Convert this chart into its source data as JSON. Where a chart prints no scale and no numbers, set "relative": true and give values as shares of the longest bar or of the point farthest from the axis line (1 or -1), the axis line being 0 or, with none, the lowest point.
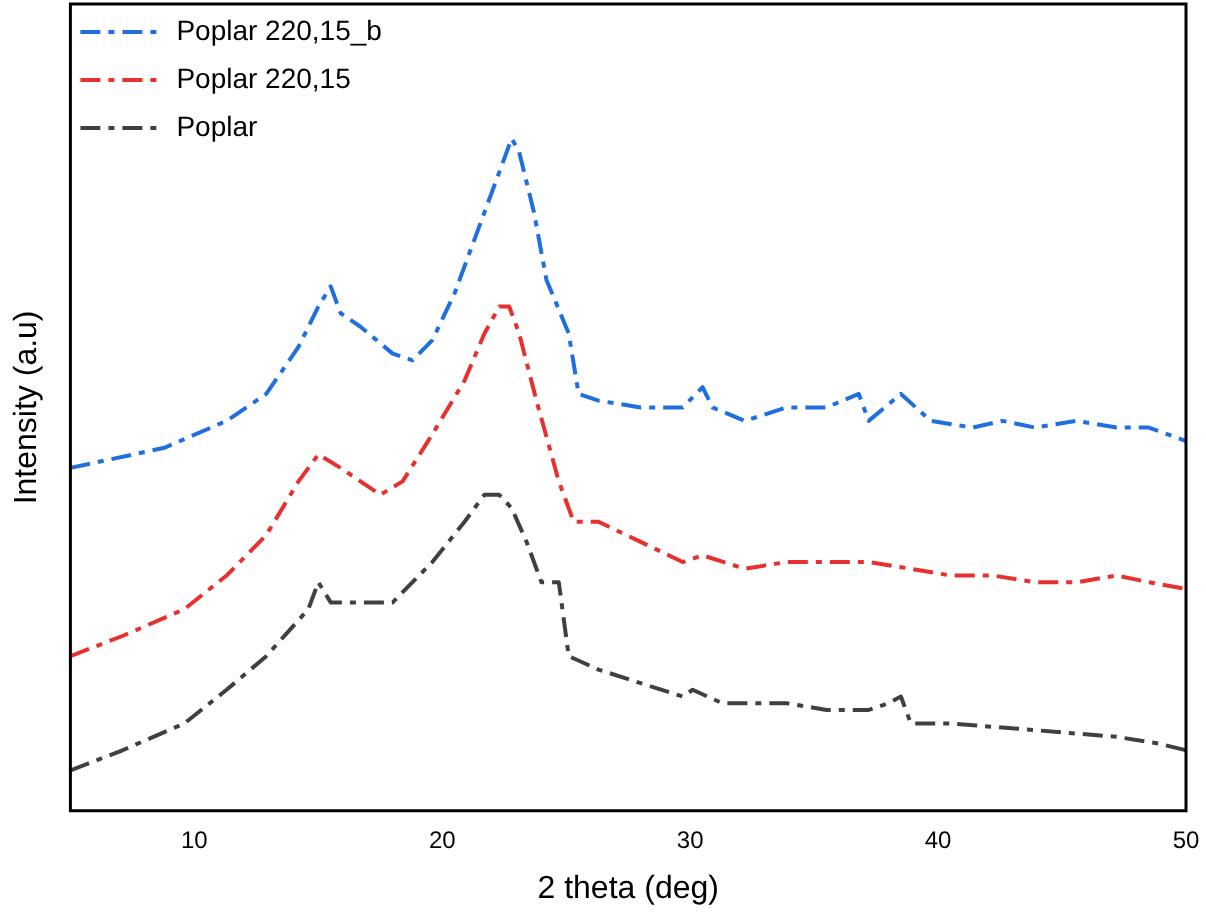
{
  "chart_data": {
    "type": "line",
    "xlabel": "2 theta (deg)",
    "ylabel": "Intensity (a.u)",
    "relative": true,
    "xlim": [
      5,
      50
    ],
    "xticks": [
      10,
      20,
      30,
      40,
      50
    ],
    "grid": false,
    "legend": "top left",
    "marker": "none",
    "line_style": "dashed",
    "series": [
      {
        "name": "Poplar 220,15_b",
        "color": "#1f6fe0",
        "x": [
          5.0,
          8.8,
          11.3,
          12.9,
          14.2,
          15.0,
          15.5,
          15.9,
          16.7,
          18.0,
          18.8,
          19.6,
          20.5,
          21.3,
          22.1,
          22.6,
          22.8,
          23.1,
          23.7,
          24.2,
          25.1,
          25.5,
          26.3,
          28.0,
          29.7,
          30.5,
          30.9,
          32.2,
          33.9,
          35.5,
          36.8,
          37.2,
          38.5,
          39.7,
          41.4,
          42.6,
          43.9,
          45.6,
          47.2,
          48.5,
          50.0
        ],
        "values": [
          0.51,
          0.54,
          0.58,
          0.62,
          0.69,
          0.75,
          0.78,
          0.74,
          0.72,
          0.68,
          0.67,
          0.7,
          0.77,
          0.85,
          0.93,
          0.98,
          1,
          0.98,
          0.89,
          0.79,
          0.71,
          0.62,
          0.61,
          0.6,
          0.6,
          0.63,
          0.6,
          0.58,
          0.6,
          0.6,
          0.62,
          0.58,
          0.62,
          0.58,
          0.57,
          0.58,
          0.57,
          0.58,
          0.57,
          0.57,
          0.55
        ]
      },
      {
        "name": "Poplar 220,15",
        "color": "#e8312f",
        "x": [
          5.0,
          7.1,
          9.6,
          11.3,
          12.9,
          14.2,
          15.0,
          15.9,
          16.7,
          17.5,
          18.4,
          19.6,
          20.9,
          21.7,
          22.3,
          22.7,
          23.1,
          23.8,
          24.7,
          25.3,
          26.3,
          28.0,
          29.7,
          30.5,
          32.2,
          33.9,
          35.5,
          37.2,
          38.9,
          40.5,
          42.2,
          43.9,
          45.6,
          47.2,
          48.5,
          50.0
        ],
        "values": [
          0.23,
          0.26,
          0.3,
          0.35,
          0.41,
          0.49,
          0.53,
          0.51,
          0.49,
          0.47,
          0.49,
          0.56,
          0.64,
          0.71,
          0.75,
          0.75,
          0.71,
          0.61,
          0.49,
          0.43,
          0.43,
          0.4,
          0.37,
          0.38,
          0.36,
          0.37,
          0.37,
          0.37,
          0.36,
          0.35,
          0.35,
          0.34,
          0.34,
          0.35,
          0.34,
          0.33
        ]
      },
      {
        "name": "Poplar",
        "color": "#404040",
        "x": [
          5.0,
          7.1,
          9.6,
          11.3,
          12.9,
          14.6,
          15.0,
          15.5,
          16.7,
          18.0,
          19.6,
          20.9,
          21.7,
          22.3,
          22.8,
          23.4,
          24.0,
          24.7,
          25.1,
          26.3,
          28.0,
          29.7,
          30.1,
          31.3,
          33.9,
          35.5,
          37.2,
          38.0,
          38.5,
          38.9,
          40.5,
          43.9,
          47.2,
          48.9,
          50.0
        ],
        "values": [
          0.06,
          0.09,
          0.13,
          0.18,
          0.23,
          0.3,
          0.34,
          0.31,
          0.31,
          0.31,
          0.37,
          0.43,
          0.47,
          0.47,
          0.45,
          0.4,
          0.34,
          0.34,
          0.23,
          0.21,
          0.19,
          0.17,
          0.18,
          0.16,
          0.16,
          0.15,
          0.15,
          0.16,
          0.17,
          0.13,
          0.13,
          0.12,
          0.11,
          0.1,
          0.09
        ]
      }
    ]
  }
}
